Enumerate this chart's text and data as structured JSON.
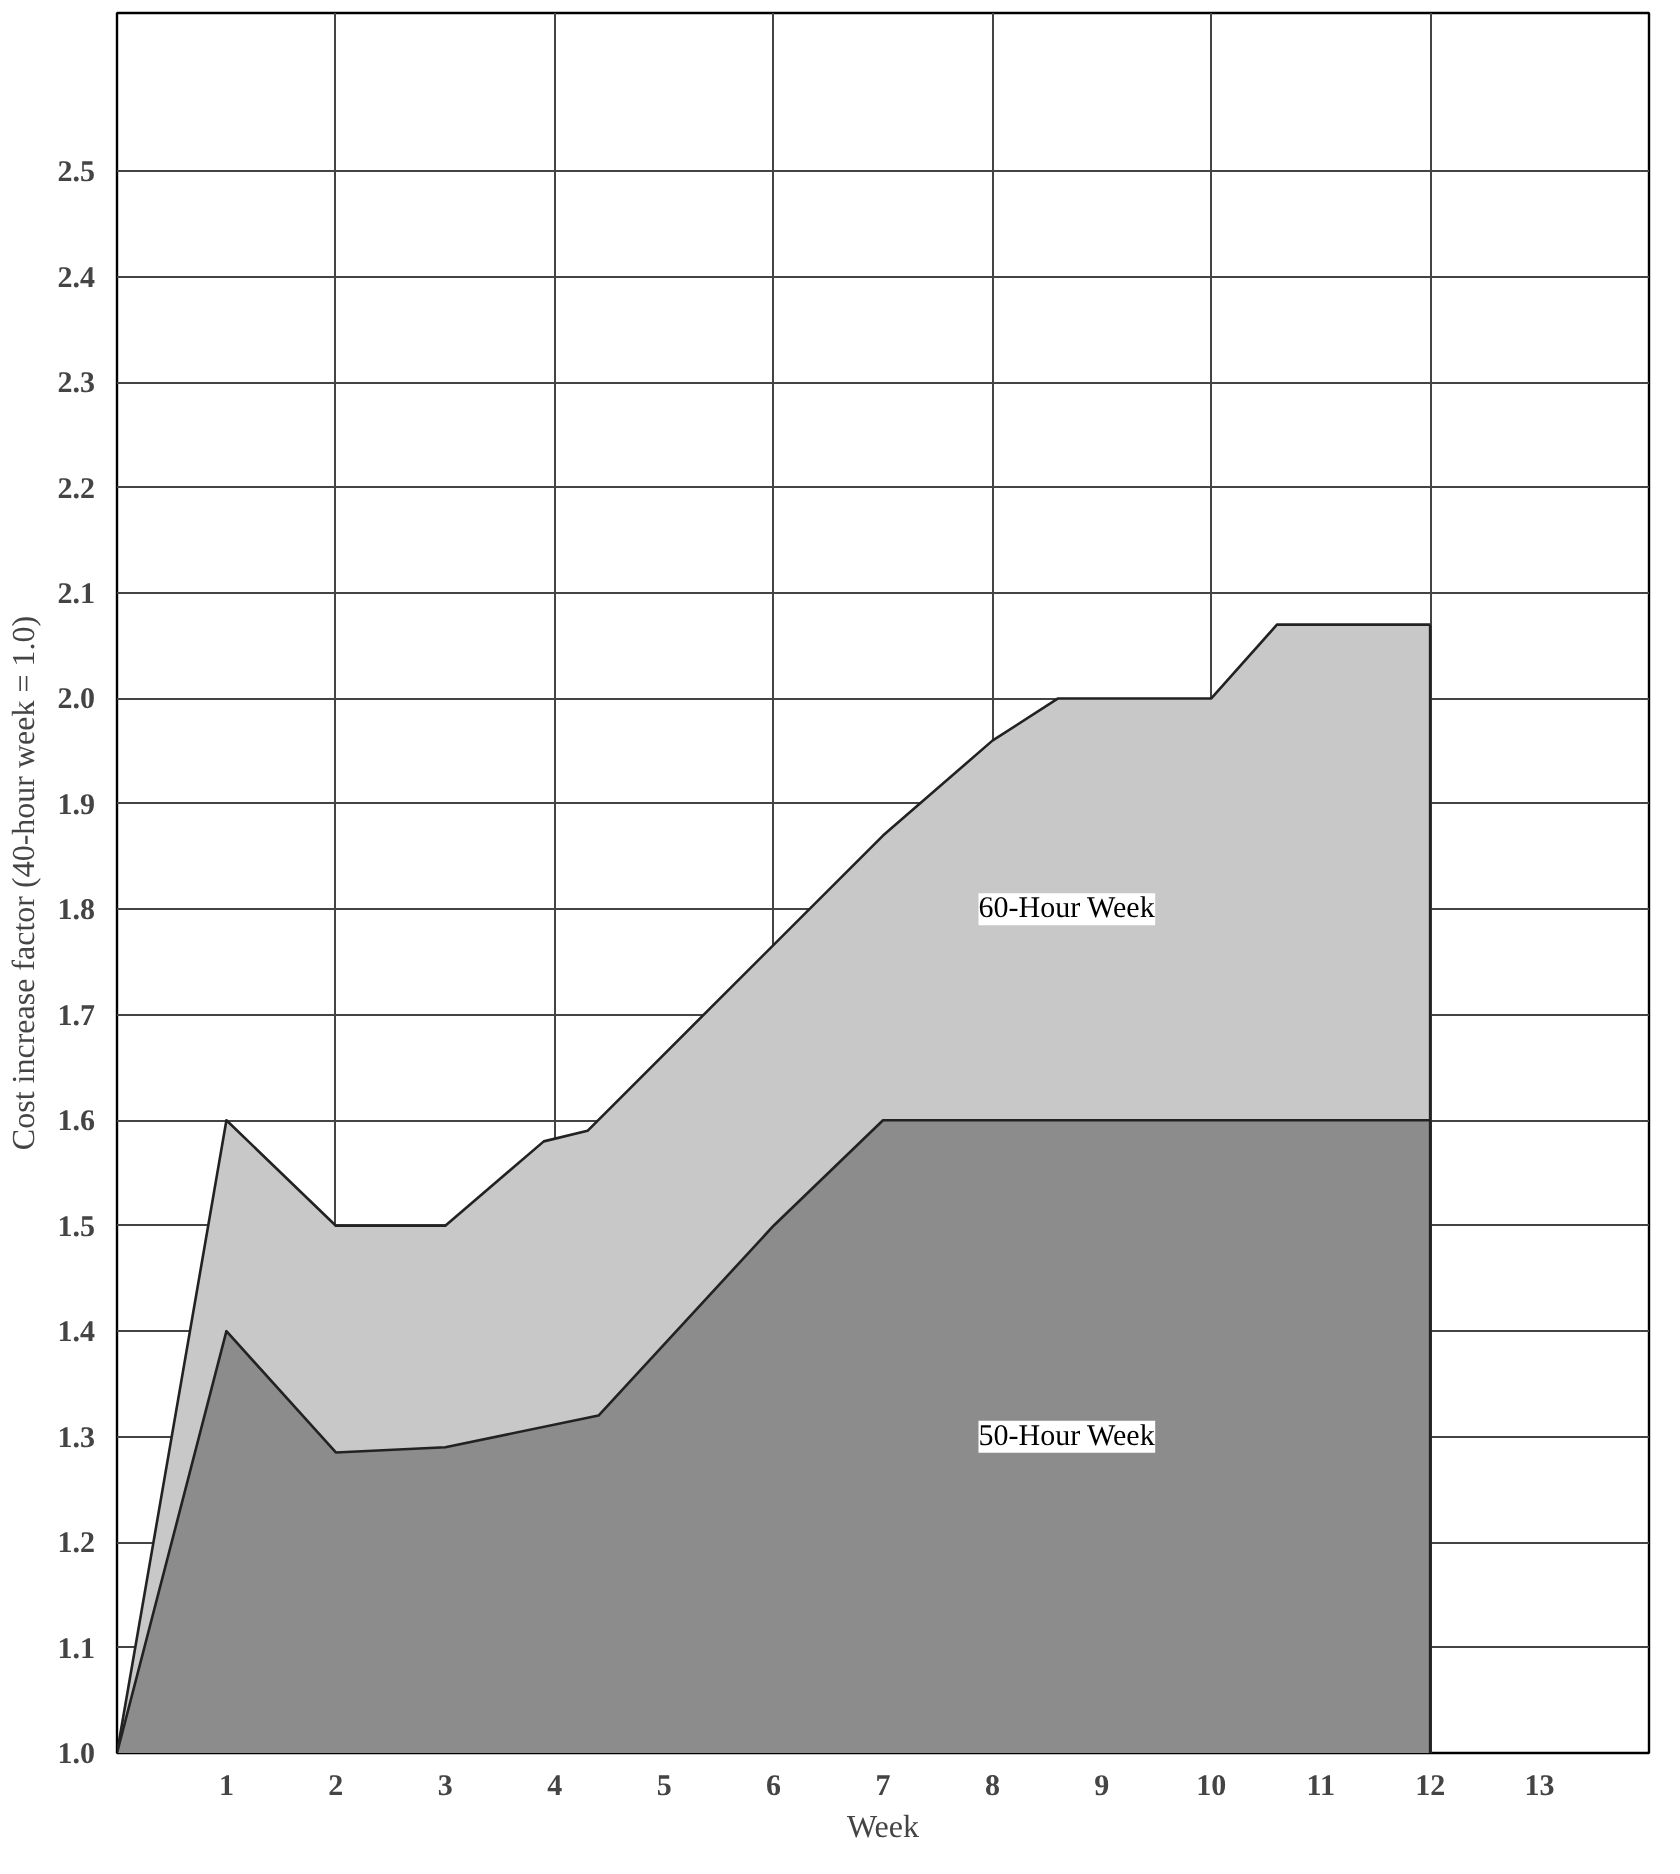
{
  "chart_data": {
    "type": "area",
    "xlabel": "Week",
    "ylabel": "Cost increase factor (40-hour week = 1.0)",
    "series": [
      {
        "name": "60-Hour Week",
        "color": "#c8c8c8",
        "x": [
          0,
          1,
          2,
          3,
          3.9,
          4.3,
          7,
          8,
          8.6,
          10,
          10.6,
          12
        ],
        "values": [
          1.0,
          1.6,
          1.5,
          1.5,
          1.58,
          1.59,
          1.87,
          1.96,
          2.0,
          2.0,
          2.07,
          2.07
        ]
      },
      {
        "name": "50-Hour Week",
        "color": "#8c8c8c",
        "x": [
          0,
          1,
          2,
          3,
          4.4,
          6,
          7,
          12
        ],
        "values": [
          1.0,
          1.4,
          1.285,
          1.29,
          1.32,
          1.5,
          1.6,
          1.6
        ]
      }
    ],
    "xlim": [
      0,
      14
    ],
    "xticks": [
      1,
      2,
      3,
      4,
      5,
      6,
      7,
      8,
      9,
      10,
      11,
      12,
      13
    ],
    "ylim": [
      1.0,
      2.65
    ],
    "yticks": [
      {
        "value": 1.0,
        "label": "1.0"
      },
      1.1,
      1.2,
      1.3,
      1.4,
      1.5,
      1.6,
      1.7,
      1.8,
      1.9,
      {
        "value": 2.0,
        "label": "2.0"
      },
      2.1,
      2.2,
      2.3,
      2.4,
      2.5
    ],
    "grid": true
  }
}
